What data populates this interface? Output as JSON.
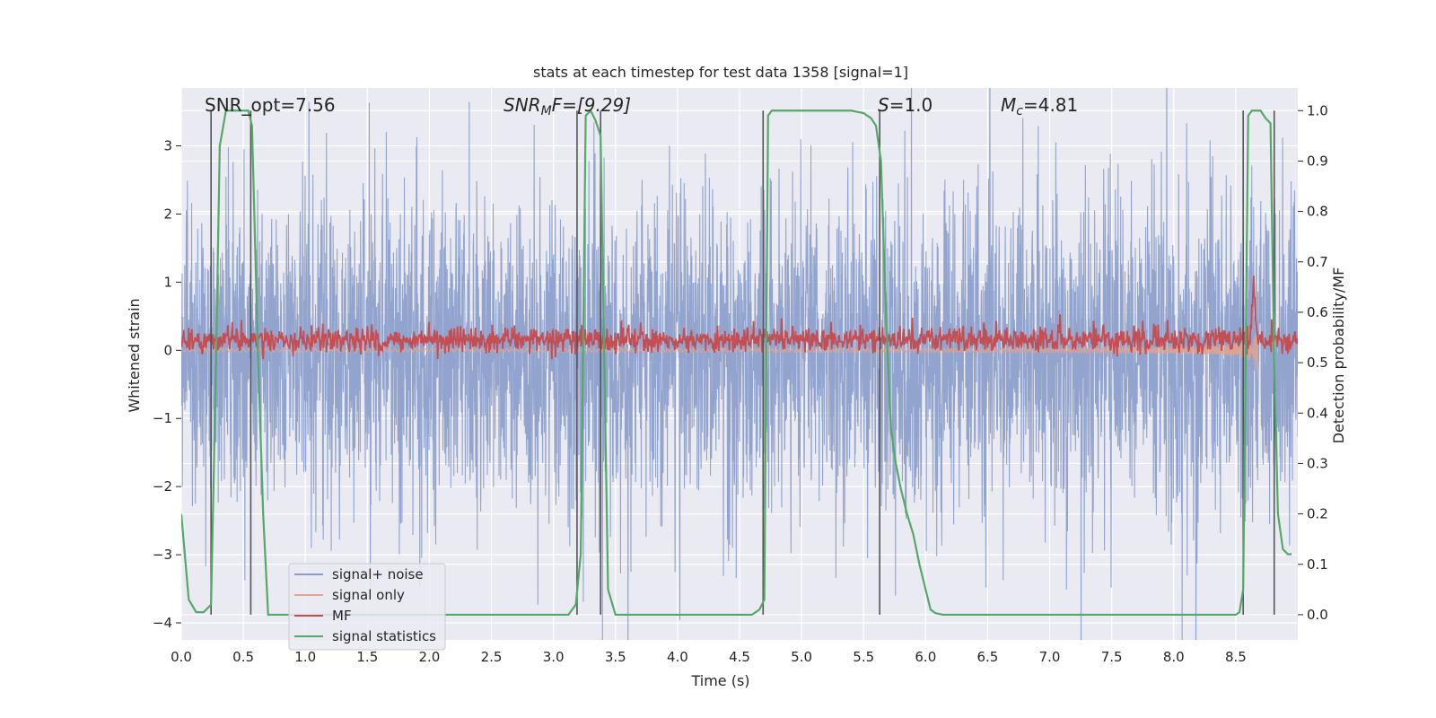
{
  "chart_data": {
    "type": "line",
    "title": "stats at each timestep for test data 1358 [signal=1]",
    "xlabel": "Time (s)",
    "ylabel_left": "Whitened strain",
    "ylabel_right": "Detection probability/MF",
    "xlim": [
      0.0,
      9.0
    ],
    "ylim_left": [
      -4.25,
      3.85
    ],
    "ylim_right": [
      -0.05,
      1.045
    ],
    "xticks": [
      "0.0",
      "0.5",
      "1.0",
      "1.5",
      "2.0",
      "2.5",
      "3.0",
      "3.5",
      "4.0",
      "4.5",
      "5.0",
      "5.5",
      "6.0",
      "6.5",
      "7.0",
      "7.5",
      "8.0",
      "8.5"
    ],
    "yticks_left": [
      "3",
      "2",
      "1",
      "0",
      "−1",
      "−2",
      "−3",
      "−4"
    ],
    "yticks_right": [
      "1.0",
      "0.9",
      "0.8",
      "0.7",
      "0.6",
      "0.5",
      "0.4",
      "0.3",
      "0.2",
      "0.1",
      "0.0"
    ],
    "annotations": {
      "snr_opt": "SNR_opt=7.56",
      "snr_mf_base": "SNR",
      "snr_mf_sub": "M",
      "snr_mf_rest": "F=[9.29]",
      "s_base": "S",
      "s_rest": "=1.0",
      "mc_base": "M",
      "mc_sub": "c",
      "mc_rest": "=4.81"
    },
    "legend": {
      "position": "lower-left",
      "entries": [
        "signal+ noise",
        "signal only",
        "MF",
        "signal statistics"
      ]
    },
    "colors": {
      "signal_noise": "#8da0cb",
      "signal_only": "#e8a38a",
      "mf": "#c44e52",
      "signal_statistics": "#55a868",
      "vlines": "#555555",
      "background": "#eaeaf2",
      "grid": "#ffffff"
    },
    "vlines_x": [
      0.24,
      0.56,
      3.19,
      3.38,
      4.69,
      5.63,
      8.56,
      8.81
    ],
    "series": [
      {
        "name": "signal statistics",
        "axis": "right",
        "x": [
          0.0,
          0.06,
          0.12,
          0.18,
          0.24,
          0.28,
          0.31,
          0.36,
          0.42,
          0.48,
          0.54,
          0.57,
          0.62,
          0.66,
          0.7,
          1.0,
          2.0,
          3.0,
          3.12,
          3.18,
          3.22,
          3.26,
          3.3,
          3.34,
          3.38,
          3.44,
          3.5,
          4.0,
          4.6,
          4.66,
          4.7,
          4.73,
          4.76,
          4.8,
          5.0,
          5.4,
          5.5,
          5.56,
          5.6,
          5.64,
          5.68,
          5.72,
          5.76,
          5.8,
          5.85,
          5.9,
          5.95,
          6.0,
          6.04,
          6.08,
          6.14,
          6.3,
          7.0,
          8.0,
          8.5,
          8.53,
          8.56,
          8.6,
          8.63,
          8.66,
          8.7,
          8.74,
          8.78,
          8.81,
          8.84,
          8.88,
          8.92,
          8.95
        ],
        "y": [
          0.2,
          0.03,
          0.005,
          0.005,
          0.02,
          0.5,
          0.93,
          1.0,
          1.0,
          1.0,
          1.0,
          0.97,
          0.5,
          0.2,
          0.0,
          0.0,
          0.0,
          0.0,
          0.0,
          0.02,
          0.12,
          0.99,
          1.0,
          0.98,
          0.95,
          0.05,
          0.0,
          0.0,
          0.0,
          0.01,
          0.03,
          0.99,
          1.0,
          1.0,
          1.0,
          1.0,
          0.995,
          0.985,
          0.97,
          0.9,
          0.6,
          0.37,
          0.3,
          0.25,
          0.2,
          0.16,
          0.1,
          0.05,
          0.01,
          0.003,
          0.0,
          0.0,
          0.0,
          0.0,
          0.0,
          0.005,
          0.05,
          0.99,
          1.0,
          1.0,
          1.0,
          0.985,
          0.975,
          0.5,
          0.2,
          0.13,
          0.12,
          0.12
        ]
      }
    ]
  }
}
